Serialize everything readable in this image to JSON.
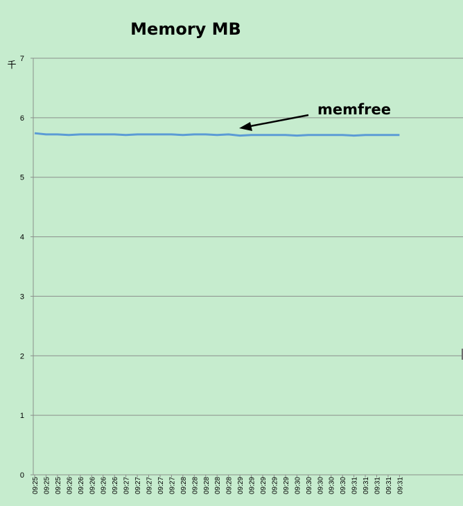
{
  "chart_data": {
    "type": "line",
    "title": "Memory MB",
    "ylabel": "",
    "y_unit_label": "千",
    "xlabel": "",
    "ylim": [
      0,
      7
    ],
    "y_ticks": [
      "0",
      "1",
      "2",
      "3",
      "4",
      "5",
      "6",
      "7"
    ],
    "grid": true,
    "annotation": "memfree",
    "x": [
      "09:25",
      "09:25",
      "09:25",
      "09:26",
      "09:26",
      "09:26",
      "09:26",
      "09:26",
      "09:27",
      "09:27",
      "09:27",
      "09:27",
      "09:27",
      "09:28",
      "09:28",
      "09:28",
      "09:28",
      "09:28",
      "09:29",
      "09:29",
      "09:29",
      "09:29",
      "09:29",
      "09:30",
      "09:30",
      "09:30",
      "09:30",
      "09:30",
      "09:31",
      "09:31",
      "09:31",
      "09:31",
      "09:31"
    ],
    "series": [
      {
        "name": "memfree",
        "color": "#5b9bd5",
        "values": [
          5.74,
          5.72,
          5.72,
          5.71,
          5.72,
          5.72,
          5.72,
          5.72,
          5.71,
          5.72,
          5.72,
          5.72,
          5.72,
          5.71,
          5.72,
          5.72,
          5.71,
          5.72,
          5.7,
          5.71,
          5.71,
          5.71,
          5.71,
          5.7,
          5.71,
          5.71,
          5.71,
          5.71,
          5.7,
          5.71,
          5.71,
          5.71,
          5.71
        ]
      }
    ]
  }
}
